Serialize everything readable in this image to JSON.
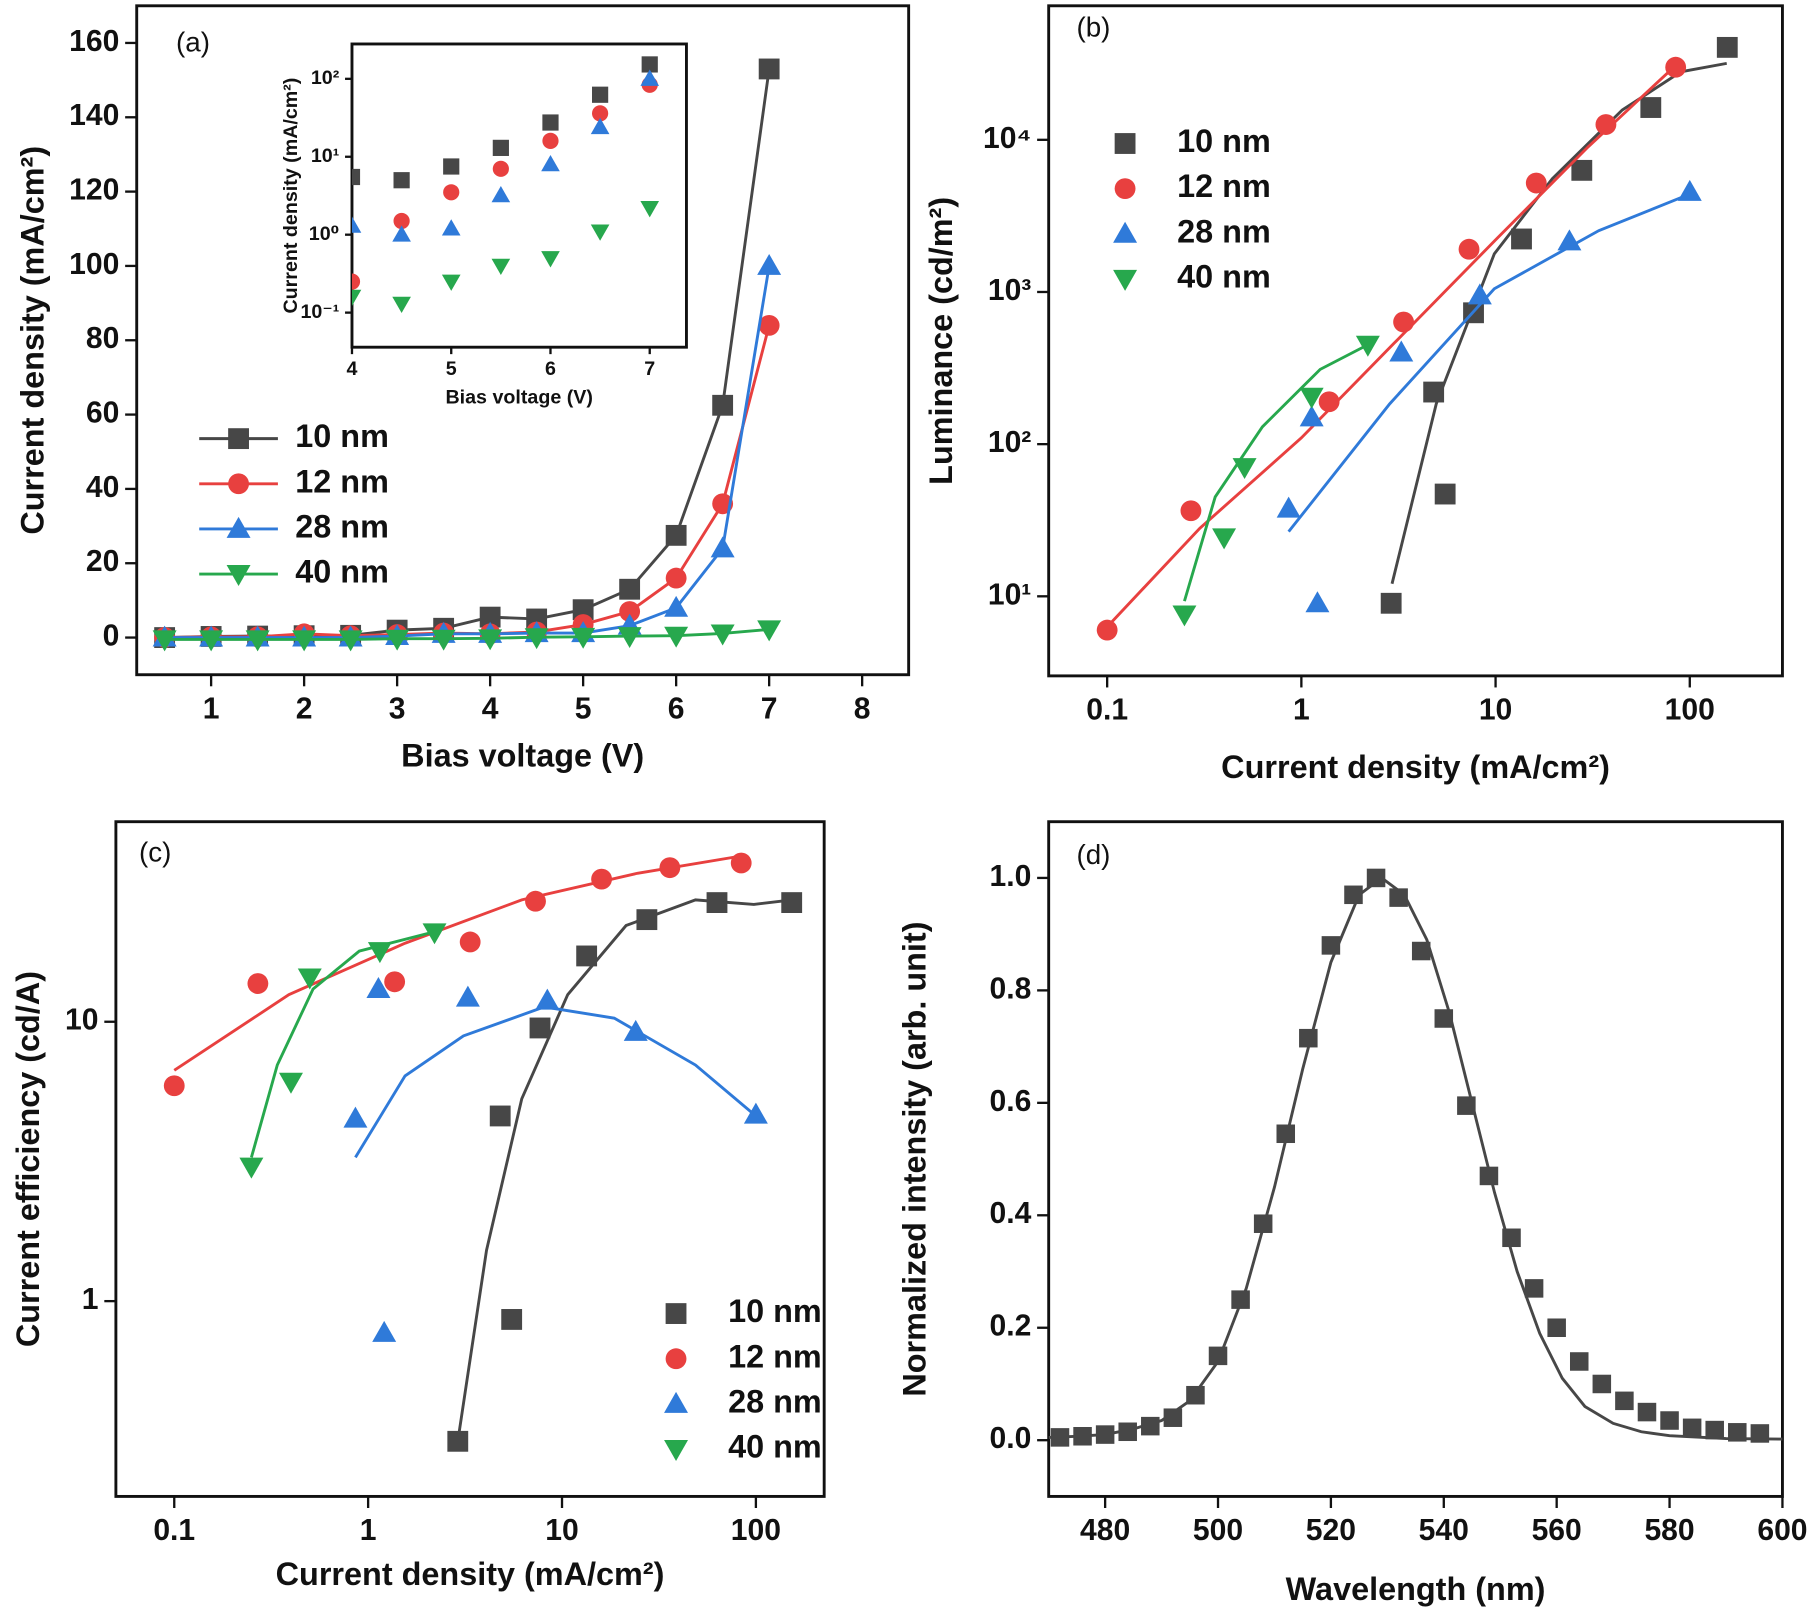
{
  "chart_data": [
    {
      "type": "line",
      "annotation": "(a)",
      "xlabel": "Bias voltage (V)",
      "ylabel": "Current density (mA/cm²)",
      "x": [
        0.5,
        1,
        1.5,
        2,
        2.5,
        3,
        3.5,
        4,
        4.5,
        5,
        5.5,
        6,
        6.5,
        7
      ],
      "xlim": [
        0.2,
        8.5
      ],
      "xticks": [
        1,
        2,
        3,
        4,
        5,
        6,
        7,
        8
      ],
      "ylim": [
        -10,
        170
      ],
      "yticks": [
        0,
        20,
        40,
        60,
        80,
        100,
        120,
        140,
        160
      ],
      "legend": "center left",
      "series": [
        {
          "name": "10 nm",
          "color": "#474747",
          "marker": "square",
          "values": [
            0,
            0.3,
            0.4,
            0.5,
            0.6,
            2,
            2.5,
            5.5,
            5,
            7.5,
            13,
            27.5,
            62.5,
            153
          ]
        },
        {
          "name": "12 nm",
          "color": "#e8403f",
          "marker": "circle",
          "values": [
            0,
            0.2,
            0.2,
            1,
            0.5,
            0.8,
            1.2,
            1,
            1.5,
            3.5,
            7,
            16,
            36,
            84
          ]
        },
        {
          "name": "28 nm",
          "color": "#2f7ad9",
          "marker": "triangle-up",
          "values": [
            0,
            0,
            0,
            0,
            0,
            0.4,
            1,
            1,
            1.2,
            1.2,
            3.2,
            8,
            24,
            100
          ]
        },
        {
          "name": "40 nm",
          "color": "#27a84d",
          "marker": "triangle-down",
          "values": [
            -0.5,
            -0.5,
            -0.5,
            -0.5,
            -0.5,
            -0.3,
            -0.3,
            -0.2,
            0.1,
            0.2,
            0.4,
            0.5,
            1.1,
            2.2
          ]
        }
      ]
    },
    {
      "type": "scatter",
      "xlabel": "Bias voltage (V)",
      "ylabel": "Current density (mA/cm²)",
      "x": [
        4,
        4.5,
        5,
        5.5,
        6,
        6.5,
        7
      ],
      "xlim": [
        4,
        7.37
      ],
      "xticks": [
        4,
        5,
        6,
        7
      ],
      "yscale": "log",
      "ylim": [
        0.036,
        280
      ],
      "yticks": [
        {
          "value": 0.1,
          "label": "10⁻¹"
        },
        {
          "value": 1,
          "label": "10⁰"
        },
        {
          "value": 10,
          "label": "10¹"
        },
        {
          "value": 100,
          "label": "10²"
        }
      ],
      "series": [
        {
          "color": "#474747",
          "marker": "square",
          "values": [
            5.5,
            5,
            7.5,
            13,
            27.5,
            62.5,
            153
          ]
        },
        {
          "color": "#e8403f",
          "marker": "circle",
          "values": [
            0.25,
            1.5,
            3.5,
            7,
            16,
            36,
            84
          ]
        },
        {
          "color": "#2f7ad9",
          "marker": "triangle-up",
          "values": [
            1.3,
            1,
            1.2,
            3.2,
            8,
            24,
            100
          ]
        },
        {
          "color": "#27a84d",
          "marker": "triangle-down",
          "values": [
            0.16,
            0.13,
            0.25,
            0.4,
            0.5,
            1.1,
            2.2
          ]
        }
      ]
    },
    {
      "type": "scatter",
      "annotation": "(b)",
      "xlabel": "Current density (mA/cm²)",
      "ylabel": "Luminance (cd/m²)",
      "xscale": "log",
      "xlim": [
        0.05,
        300
      ],
      "xticks": [
        0.1,
        1,
        10,
        100
      ],
      "yscale": "log",
      "ylim": [
        3,
        76000
      ],
      "yticks": [
        {
          "value": 10,
          "label": "10¹"
        },
        {
          "value": 100,
          "label": "10²"
        },
        {
          "value": 1000,
          "label": "10³"
        },
        {
          "value": 10000,
          "label": "10⁴"
        }
      ],
      "legend": "upper left",
      "series": [
        {
          "name": "10 nm",
          "color": "#474747",
          "marker": "square",
          "x": [
            2.9,
            4.8,
            5.5,
            7.7,
            13.6,
            27.8,
            63,
            156
          ],
          "values": [
            9,
            220,
            47,
            730,
            2230,
            6300,
            16300,
            40500
          ],
          "fit": {
            "x": [
              2.93,
              4.95,
              9.85,
              19.6,
              44.9,
              90,
              155
            ],
            "values": [
              12.1,
              184,
              1780,
              5550,
              15700,
              28000,
              31800
            ]
          }
        },
        {
          "name": "12 nm",
          "color": "#e8403f",
          "marker": "circle",
          "x": [
            0.1,
            0.27,
            1.39,
            3.36,
            7.3,
            16.2,
            37,
            84.6
          ],
          "values": [
            6,
            36.5,
            190,
            635,
            1910,
            5200,
            12600,
            30000
          ],
          "fit": {
            "x": [
              0.1,
              0.3,
              1,
              3,
              10,
              30,
              85
            ],
            "values": [
              6.3,
              28,
              110,
              460,
              2200,
              9000,
              31000
            ]
          }
        },
        {
          "name": "28 nm",
          "color": "#2f7ad9",
          "marker": "triangle-up",
          "x": [
            0.86,
            1.13,
            1.21,
            3.27,
            8.3,
            24,
            100
          ],
          "values": [
            37.7,
            150,
            9,
            400,
            950,
            2150,
            4550
          ],
          "fit": {
            "x": [
              0.86,
              2.85,
              9.85,
              34,
              100
            ],
            "values": [
              26.6,
              184,
              1050,
              2530,
              4400
            ]
          }
        },
        {
          "name": "40 nm",
          "color": "#27a84d",
          "marker": "triangle-down",
          "x": [
            0.25,
            0.4,
            0.51,
            1.13,
            2.2
          ],
          "values": [
            7.6,
            24.4,
            70.7,
            205,
            450
          ],
          "fit": {
            "x": [
              0.25,
              0.36,
              0.63,
              1.25,
              2.2
            ],
            "values": [
              9.3,
              45,
              130,
              310,
              450
            ]
          }
        }
      ]
    },
    {
      "type": "scatter",
      "annotation": "(c)",
      "xlabel": "Current density (mA/cm²)",
      "ylabel": "Current efficiency (cd/A)",
      "xscale": "log",
      "xlim": [
        0.05,
        225
      ],
      "xticks": [
        0.1,
        1,
        10,
        100
      ],
      "yscale": "log",
      "ylim": [
        0.2,
        52
      ],
      "yticks": [
        1,
        10
      ],
      "legend": "lower right",
      "series": [
        {
          "name": "10 nm",
          "color": "#474747",
          "marker": "square",
          "x": [
            2.9,
            4.8,
            5.5,
            7.7,
            13.4,
            27.4,
            63,
            153
          ],
          "values": [
            0.315,
            4.6,
            0.86,
            9.5,
            17.2,
            23.2,
            26.7,
            26.7
          ],
          "fit": {
            "x": [
              2.9,
              4.08,
              6.2,
              10.7,
              21.4,
              48.8,
              97.6,
              153
            ],
            "values": [
              0.315,
              1.52,
              5.3,
              12.5,
              22.1,
              27.3,
              26.3,
              27.3
            ]
          }
        },
        {
          "name": "12 nm",
          "color": "#e8403f",
          "marker": "circle",
          "x": [
            0.1,
            0.27,
            1.37,
            3.36,
            7.3,
            16,
            36,
            84
          ],
          "values": [
            5.9,
            13.7,
            13.9,
            19.3,
            27,
            32.4,
            35.6,
            37
          ],
          "fit": {
            "x": [
              0.1,
              0.39,
              1.55,
              6.2,
              24.5,
              84
            ],
            "values": [
              6.7,
              12.5,
              19.1,
              27.3,
              34,
              39.2
            ]
          }
        },
        {
          "name": "28 nm",
          "color": "#2f7ad9",
          "marker": "triangle-up",
          "x": [
            0.86,
            1.13,
            1.21,
            3.27,
            8.4,
            24,
            100
          ],
          "values": [
            4.5,
            13.1,
            0.77,
            12.2,
            11.9,
            9.2,
            4.65
          ],
          "fit": {
            "x": [
              0.86,
              1.55,
              3.1,
              8.1,
              18.6,
              48.8,
              100
            ],
            "values": [
              3.27,
              6.4,
              8.9,
              11.3,
              10.3,
              7,
              4.6
            ]
          }
        },
        {
          "name": "40 nm",
          "color": "#27a84d",
          "marker": "triangle-down",
          "x": [
            0.25,
            0.4,
            0.5,
            1.15,
            2.2
          ],
          "values": [
            3.03,
            6.1,
            14.4,
            17.9,
            20.9
          ],
          "fit": {
            "x": [
              0.25,
              0.34,
              0.52,
              0.9,
              2.2
            ],
            "values": [
              3.27,
              7,
              13.1,
              17.9,
              21
            ]
          }
        }
      ]
    },
    {
      "type": "scatter",
      "annotation": "(d)",
      "xlabel": "Wavelength (nm)",
      "ylabel": "Normalized intensity (arb. unit)",
      "x": [
        472,
        476,
        480,
        484,
        488,
        492,
        496,
        500,
        504,
        508,
        512,
        516,
        520,
        524,
        528,
        532,
        536,
        540,
        544,
        548,
        552,
        556,
        560,
        564,
        568,
        572,
        576,
        580,
        584,
        588,
        592,
        596
      ],
      "xlim": [
        470,
        600
      ],
      "xticks": [
        480,
        500,
        520,
        540,
        560,
        580,
        600
      ],
      "ylim": [
        -0.1,
        1.1
      ],
      "yticks": [
        {
          "value": 0,
          "label": "0.0"
        },
        0.2,
        0.4,
        0.6,
        0.8,
        {
          "value": 1,
          "label": "1.0"
        }
      ],
      "series": [
        {
          "color": "#474747",
          "marker": "square",
          "values": [
            0.005,
            0.007,
            0.01,
            0.015,
            0.025,
            0.04,
            0.08,
            0.15,
            0.25,
            0.385,
            0.545,
            0.715,
            0.88,
            0.97,
            1.0,
            0.965,
            0.87,
            0.75,
            0.595,
            0.47,
            0.36,
            0.27,
            0.2,
            0.14,
            0.1,
            0.07,
            0.05,
            0.035,
            0.022,
            0.018,
            0.014,
            0.012
          ],
          "fit": {
            "x": [
              470,
              475,
              480,
              485,
              490,
              495,
              500,
              505,
              510,
              515,
              520,
              525,
              529,
              533,
              537,
              541,
              545,
              549,
              553,
              557,
              561,
              565,
              570,
              575,
              580,
              590,
              600
            ],
            "values": [
              0.005,
              0.007,
              0.01,
              0.02,
              0.035,
              0.07,
              0.14,
              0.27,
              0.45,
              0.66,
              0.85,
              0.97,
              1.0,
              0.97,
              0.89,
              0.76,
              0.6,
              0.44,
              0.3,
              0.19,
              0.11,
              0.06,
              0.03,
              0.015,
              0.008,
              0.003,
              0.002
            ]
          }
        }
      ]
    }
  ]
}
